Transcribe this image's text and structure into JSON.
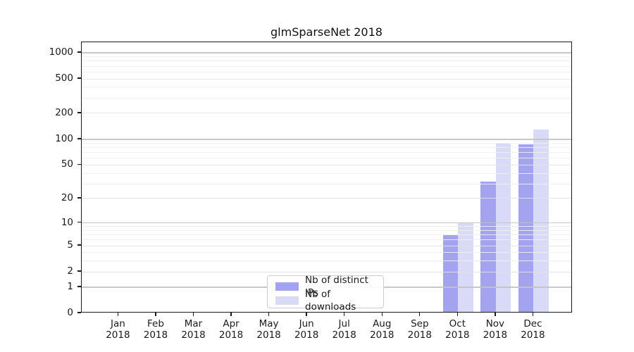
{
  "title": "glmSparseNet 2018",
  "chart_data": {
    "type": "bar",
    "title": "glmSparseNet 2018",
    "scale": "log1p",
    "grid": "on",
    "legend_position": "bottom-center-inside",
    "year_label": "2018",
    "categories": [
      "Jan",
      "Feb",
      "Mar",
      "Apr",
      "May",
      "Jun",
      "Jul",
      "Aug",
      "Sep",
      "Oct",
      "Nov",
      "Dec"
    ],
    "series": [
      {
        "name": "Nb of distinct IPs",
        "color": "#a3a3f0",
        "values": [
          0,
          0,
          0,
          0,
          0,
          0,
          0,
          0,
          0,
          7,
          32,
          87
        ]
      },
      {
        "name": "Nb of downloads",
        "color": "#d9d9f8",
        "values": [
          0,
          0,
          0,
          0,
          0,
          0,
          0,
          0,
          0,
          10,
          91,
          129
        ]
      }
    ],
    "y_ticks": [
      0,
      1,
      2,
      5,
      10,
      20,
      50,
      100,
      200,
      500,
      1000
    ],
    "y_minor_ticks": [
      3,
      4,
      6,
      7,
      8,
      9,
      30,
      40,
      60,
      70,
      80,
      90,
      300,
      400,
      600,
      700,
      800,
      900
    ],
    "ylim": [
      0,
      1000
    ],
    "xlabel": "",
    "ylabel": ""
  },
  "colors": {
    "decade_gridline": "#c2c2c2",
    "major_gridline": "#e3e3e3",
    "minor_gridline": "#f0f0f0",
    "axis": "#1a1a1a"
  }
}
